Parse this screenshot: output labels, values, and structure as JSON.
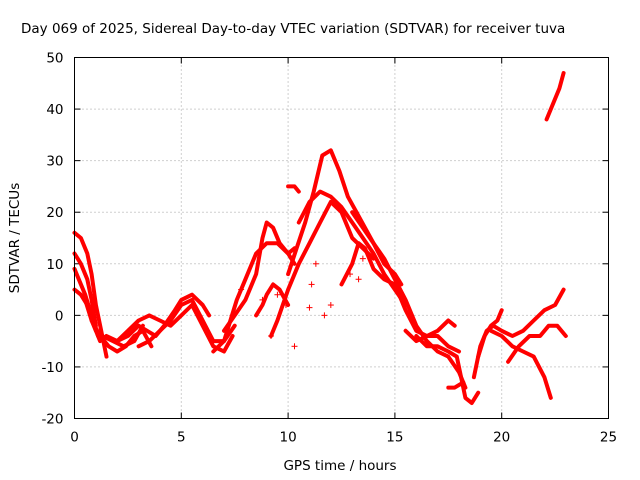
{
  "chart_data": {
    "type": "scatter",
    "title": "Day 069 of 2025, Sidereal Day-to-day VTEC variation (SDTVAR) for receiver tuva",
    "xlabel": "GPS time / hours",
    "ylabel": "SDTVAR / TECUs",
    "xlim": [
      0,
      25
    ],
    "ylim": [
      -20,
      50
    ],
    "xticks": [
      0,
      5,
      10,
      15,
      20,
      25
    ],
    "yticks": [
      -20,
      -10,
      0,
      10,
      20,
      30,
      40,
      50
    ],
    "xtick_labels": [
      "0",
      "5",
      "10",
      "15",
      "20",
      "25"
    ],
    "ytick_labels": [
      "-20",
      "-10",
      "0",
      "10",
      "20",
      "30",
      "40",
      "50"
    ],
    "grid": true,
    "marker": "+",
    "color": "#ff0000",
    "series": [
      {
        "name": "s1",
        "x": [
          0.0,
          0.3,
          0.6,
          0.8,
          1.0,
          1.3,
          1.5
        ],
        "y": [
          16,
          15,
          12,
          8,
          2,
          -4,
          -8
        ]
      },
      {
        "name": "s2",
        "x": [
          0.0,
          0.3,
          0.6,
          0.8,
          1.0
        ],
        "y": [
          12,
          10,
          7,
          3,
          -2
        ]
      },
      {
        "name": "s3",
        "x": [
          0.0,
          0.2,
          0.5,
          0.8,
          1.0,
          1.2
        ],
        "y": [
          9,
          7,
          4,
          0,
          -3,
          -5
        ]
      },
      {
        "name": "s4",
        "x": [
          0.0,
          0.3,
          0.6,
          0.9,
          1.1
        ],
        "y": [
          5,
          4,
          2,
          -1,
          -4
        ]
      },
      {
        "name": "s5",
        "x": [
          0.5,
          0.8,
          1.0,
          1.3,
          1.8,
          2.3,
          2.8,
          3.2
        ],
        "y": [
          3,
          -1,
          -3,
          -4,
          -5,
          -6,
          -5,
          -2
        ]
      },
      {
        "name": "s6",
        "x": [
          0.8,
          1.2,
          1.6,
          2.0,
          2.4,
          2.8,
          3.2,
          3.6
        ],
        "y": [
          -1,
          -4,
          -6,
          -7,
          -6,
          -4,
          -3,
          -6
        ]
      },
      {
        "name": "s7",
        "x": [
          1.5,
          2.0,
          2.5,
          3.0,
          3.4,
          3.8,
          4.2,
          4.7,
          5.0,
          5.5,
          6.0,
          6.3
        ],
        "y": [
          -4,
          -5,
          -4,
          -2,
          -3,
          -4,
          -2,
          1,
          3,
          4,
          2,
          0
        ]
      },
      {
        "name": "s8",
        "x": [
          2.0,
          2.5,
          3.0,
          3.5,
          4.0,
          4.5,
          5.0,
          5.5,
          6.0,
          6.5,
          7.0,
          7.4
        ],
        "y": [
          -5,
          -3,
          -1,
          0,
          -1,
          -2,
          0,
          2,
          -2,
          -6,
          -7,
          -4
        ]
      },
      {
        "name": "s9",
        "x": [
          3.0,
          3.5,
          4.0,
          4.5,
          5.0,
          5.5,
          6.0,
          6.5,
          7.0,
          7.5
        ],
        "y": [
          -6,
          -5,
          -3,
          -1,
          2,
          3,
          -1,
          -5,
          -5,
          -2
        ]
      },
      {
        "name": "s10",
        "x": [
          6.5,
          7.0,
          7.3,
          7.6,
          8.0,
          8.5,
          9.0,
          9.5,
          10.0,
          10.3
        ],
        "y": [
          -7,
          -5,
          -1,
          3,
          7,
          12,
          14,
          14,
          12,
          10
        ]
      },
      {
        "name": "s11",
        "x": [
          7.0,
          7.5,
          8.0,
          8.5,
          8.8,
          9.0,
          9.3,
          9.6,
          10.0,
          10.3
        ],
        "y": [
          -3,
          0,
          3,
          8,
          15,
          18,
          17,
          14,
          12,
          13
        ]
      },
      {
        "name": "s12",
        "x": [
          8.5,
          8.8,
          9.0,
          9.3,
          9.6,
          10.0
        ],
        "y": [
          0,
          2,
          4,
          6,
          5,
          2
        ]
      },
      {
        "name": "s13",
        "x": [
          9.2,
          9.5,
          10.0,
          10.5,
          11.0,
          11.5,
          12.0,
          12.5,
          13.0,
          13.5,
          14.0
        ],
        "y": [
          -4,
          -1,
          5,
          10,
          14,
          18,
          22,
          20,
          15,
          13,
          11
        ]
      },
      {
        "name": "s14",
        "x": [
          10.0,
          10.4,
          10.8,
          11.2,
          11.6,
          12.0,
          12.4,
          12.8,
          13.2,
          13.6,
          14.0,
          14.5,
          15.0,
          15.3
        ],
        "y": [
          8,
          13,
          18,
          24,
          31,
          32,
          28,
          23,
          20,
          17,
          14,
          10,
          8,
          6
        ]
      },
      {
        "name": "s15",
        "x": [
          10.5,
          11.0,
          11.5,
          12.0,
          12.5,
          13.0,
          13.5,
          14.0,
          14.5,
          15.0,
          15.5
        ],
        "y": [
          18,
          22,
          24,
          23,
          21,
          18,
          15,
          12,
          8,
          5,
          2
        ]
      },
      {
        "name": "s16",
        "x": [
          10.0,
          10.3,
          10.5
        ],
        "y": [
          25,
          25,
          24
        ]
      },
      {
        "name": "s17",
        "x": [
          12.5,
          13.0,
          13.3,
          13.6,
          14.0,
          14.5,
          15.0,
          15.5,
          16.0,
          16.5,
          17.0,
          17.5,
          18.0
        ],
        "y": [
          6,
          10,
          14,
          13,
          9,
          7,
          6,
          1,
          -3,
          -4,
          -4,
          -6,
          -7
        ]
      },
      {
        "name": "s18",
        "x": [
          13.0,
          13.5,
          14.0,
          14.5,
          15.0,
          15.5,
          16.0,
          16.5,
          17.0,
          17.5,
          18.0,
          18.3
        ],
        "y": [
          20,
          17,
          14,
          11,
          7,
          3,
          -2,
          -5,
          -7,
          -8,
          -11,
          -14
        ]
      },
      {
        "name": "s19",
        "x": [
          15.5,
          16.0,
          16.5,
          17.0,
          17.5,
          17.8
        ],
        "y": [
          -3,
          -5,
          -4,
          -3,
          -1,
          -2
        ]
      },
      {
        "name": "s20",
        "x": [
          16.0,
          16.5,
          17.0,
          17.5,
          17.9,
          18.3,
          18.6,
          18.9
        ],
        "y": [
          -4,
          -6,
          -6,
          -7,
          -8,
          -16,
          -17,
          -15
        ]
      },
      {
        "name": "s21",
        "x": [
          17.5,
          17.8,
          18.2
        ],
        "y": [
          -14,
          -14,
          -13
        ]
      },
      {
        "name": "s22",
        "x": [
          18.7,
          19.0,
          19.3,
          19.6,
          20.0,
          20.5,
          21.0,
          21.5,
          22.0,
          22.5,
          22.9
        ],
        "y": [
          -12,
          -6,
          -3,
          -2,
          -3,
          -4,
          -3,
          -1,
          1,
          2,
          5
        ]
      },
      {
        "name": "s23",
        "x": [
          18.9,
          19.2,
          19.5,
          19.8,
          20.0
        ],
        "y": [
          -8,
          -4,
          -2,
          -1,
          1
        ]
      },
      {
        "name": "s24",
        "x": [
          19.5,
          20.0,
          20.5,
          21.0,
          21.5,
          22.0,
          22.3
        ],
        "y": [
          -3,
          -4,
          -6,
          -7,
          -8,
          -12,
          -16
        ]
      },
      {
        "name": "s25",
        "x": [
          20.3,
          20.8,
          21.3,
          21.8,
          22.2,
          22.6,
          23.0
        ],
        "y": [
          -9,
          -6,
          -4,
          -4,
          -2,
          -2,
          -4
        ]
      },
      {
        "name": "s26",
        "x": [
          22.1,
          22.4,
          22.7,
          22.9
        ],
        "y": [
          38,
          41,
          44,
          47
        ]
      }
    ],
    "isolated_points": [
      {
        "x": 9.2,
        "y": -4
      },
      {
        "x": 9.5,
        "y": 4
      },
      {
        "x": 9.9,
        "y": 2
      },
      {
        "x": 10.3,
        "y": -6
      },
      {
        "x": 11.0,
        "y": 1.5
      },
      {
        "x": 11.1,
        "y": 6
      },
      {
        "x": 11.3,
        "y": 10
      },
      {
        "x": 11.7,
        "y": 0
      },
      {
        "x": 12.0,
        "y": 2
      },
      {
        "x": 12.9,
        "y": 8
      },
      {
        "x": 13.5,
        "y": 11
      },
      {
        "x": 13.3,
        "y": 7
      },
      {
        "x": 7.4,
        "y": 0
      },
      {
        "x": 7.8,
        "y": 5
      },
      {
        "x": 8.8,
        "y": 3
      }
    ]
  }
}
